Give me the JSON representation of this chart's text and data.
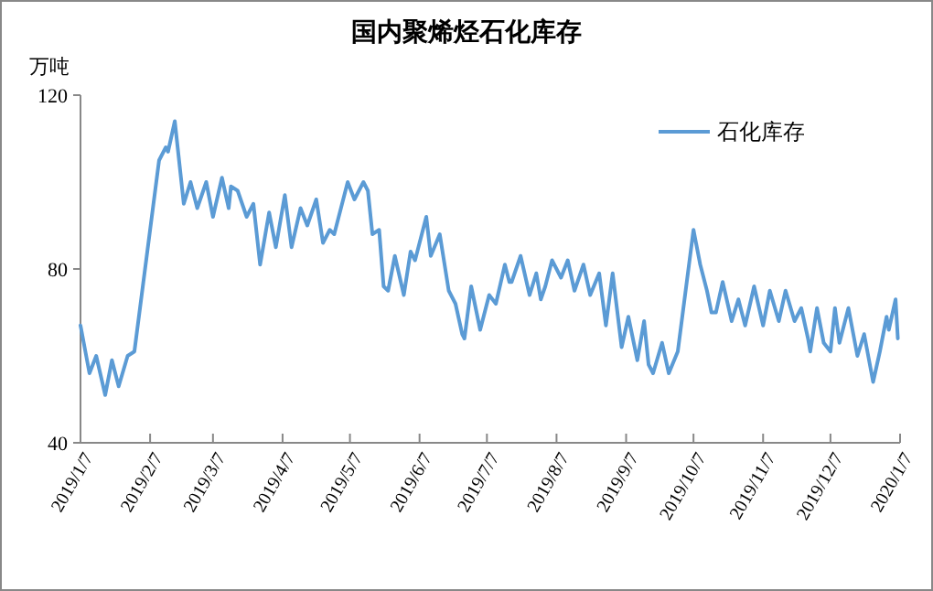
{
  "chart_data": {
    "type": "line",
    "title": "国内聚烯烃石化库存",
    "ylabel": "万吨",
    "x": [
      "2019-01-07",
      "2019-01-11",
      "2019-01-14",
      "2019-01-18",
      "2019-01-21",
      "2019-01-24",
      "2019-01-28",
      "2019-01-31",
      "2019-02-11",
      "2019-02-14",
      "2019-02-15",
      "2019-02-18",
      "2019-02-22",
      "2019-02-25",
      "2019-02-28",
      "2019-03-04",
      "2019-03-07",
      "2019-03-11",
      "2019-03-14",
      "2019-03-15",
      "2019-03-18",
      "2019-03-22",
      "2019-03-25",
      "2019-03-28",
      "2019-04-01",
      "2019-04-04",
      "2019-04-08",
      "2019-04-11",
      "2019-04-15",
      "2019-04-18",
      "2019-04-22",
      "2019-04-25",
      "2019-04-28",
      "2019-04-30",
      "2019-05-06",
      "2019-05-09",
      "2019-05-10",
      "2019-05-13",
      "2019-05-15",
      "2019-05-17",
      "2019-05-20",
      "2019-05-22",
      "2019-05-24",
      "2019-05-27",
      "2019-05-31",
      "2019-06-03",
      "2019-06-05",
      "2019-06-10",
      "2019-06-12",
      "2019-06-16",
      "2019-06-20",
      "2019-06-23",
      "2019-06-26",
      "2019-06-27",
      "2019-06-30",
      "2019-07-04",
      "2019-07-08",
      "2019-07-11",
      "2019-07-15",
      "2019-07-17",
      "2019-07-18",
      "2019-07-22",
      "2019-07-26",
      "2019-07-29",
      "2019-07-31",
      "2019-08-02",
      "2019-08-05",
      "2019-08-09",
      "2019-08-12",
      "2019-08-15",
      "2019-08-19",
      "2019-08-22",
      "2019-08-26",
      "2019-08-29",
      "2019-09-01",
      "2019-09-05",
      "2019-09-08",
      "2019-09-12",
      "2019-09-15",
      "2019-09-17",
      "2019-09-19",
      "2019-09-23",
      "2019-09-26",
      "2019-09-30",
      "2019-10-07",
      "2019-10-10",
      "2019-10-13",
      "2019-10-15",
      "2019-10-17",
      "2019-10-20",
      "2019-10-24",
      "2019-10-27",
      "2019-10-30",
      "2019-11-03",
      "2019-11-07",
      "2019-11-10",
      "2019-11-14",
      "2019-11-17",
      "2019-11-21",
      "2019-11-24",
      "2019-11-27",
      "2019-11-28",
      "2019-12-01",
      "2019-12-04",
      "2019-12-07",
      "2019-12-09",
      "2019-12-11",
      "2019-12-15",
      "2019-12-19",
      "2019-12-22",
      "2019-12-26",
      "2019-12-29",
      "2020-01-01",
      "2020-01-02",
      "2020-01-05",
      "2020-01-06"
    ],
    "series": [
      {
        "name": "石化库存",
        "color": "#5b9bd5",
        "values": [
          67,
          56,
          60,
          51,
          59,
          53,
          60,
          61,
          105,
          108,
          107,
          114,
          95,
          100,
          94,
          100,
          92,
          101,
          94,
          99,
          98,
          92,
          95,
          81,
          93,
          85,
          97,
          85,
          94,
          90,
          96,
          86,
          89,
          88,
          100,
          96,
          97,
          100,
          98,
          88,
          89,
          76,
          75,
          83,
          74,
          84,
          82,
          92,
          83,
          88,
          75,
          72,
          65,
          64,
          76,
          66,
          74,
          72,
          81,
          77,
          77,
          83,
          74,
          79,
          73,
          76,
          82,
          78,
          82,
          75,
          81,
          74,
          79,
          67,
          79,
          62,
          69,
          59,
          68,
          58,
          56,
          63,
          56,
          61,
          89,
          81,
          75,
          70,
          70,
          77,
          68,
          73,
          67,
          76,
          67,
          75,
          68,
          75,
          68,
          71,
          64,
          61,
          71,
          63,
          61,
          71,
          63,
          71,
          60,
          65,
          54,
          61,
          69,
          66,
          73,
          64
        ]
      }
    ],
    "xlim": [
      "2019-01-07",
      "2020-01-07"
    ],
    "xticks": [
      {
        "value": "2019-01-07",
        "label": "2019/1/7"
      },
      {
        "value": "2019-02-07",
        "label": "2019/2/7"
      },
      {
        "value": "2019-03-07",
        "label": "2019/3/7"
      },
      {
        "value": "2019-04-07",
        "label": "2019/4/7"
      },
      {
        "value": "2019-05-07",
        "label": "2019/5/7"
      },
      {
        "value": "2019-06-07",
        "label": "2019/6/7"
      },
      {
        "value": "2019-07-07",
        "label": "2019/7/7"
      },
      {
        "value": "2019-08-07",
        "label": "2019/8/7"
      },
      {
        "value": "2019-09-07",
        "label": "2019/9/7"
      },
      {
        "value": "2019-10-07",
        "label": "2019/10/7"
      },
      {
        "value": "2019-11-07",
        "label": "2019/11/7"
      },
      {
        "value": "2019-12-07",
        "label": "2019/12/7"
      },
      {
        "value": "2020-01-07",
        "label": "2020/1/7"
      }
    ],
    "ylim": [
      40,
      120
    ],
    "yticks": [
      40,
      80,
      120
    ],
    "grid": false,
    "legend": "top right",
    "marker": "none",
    "line_style": "solid"
  }
}
